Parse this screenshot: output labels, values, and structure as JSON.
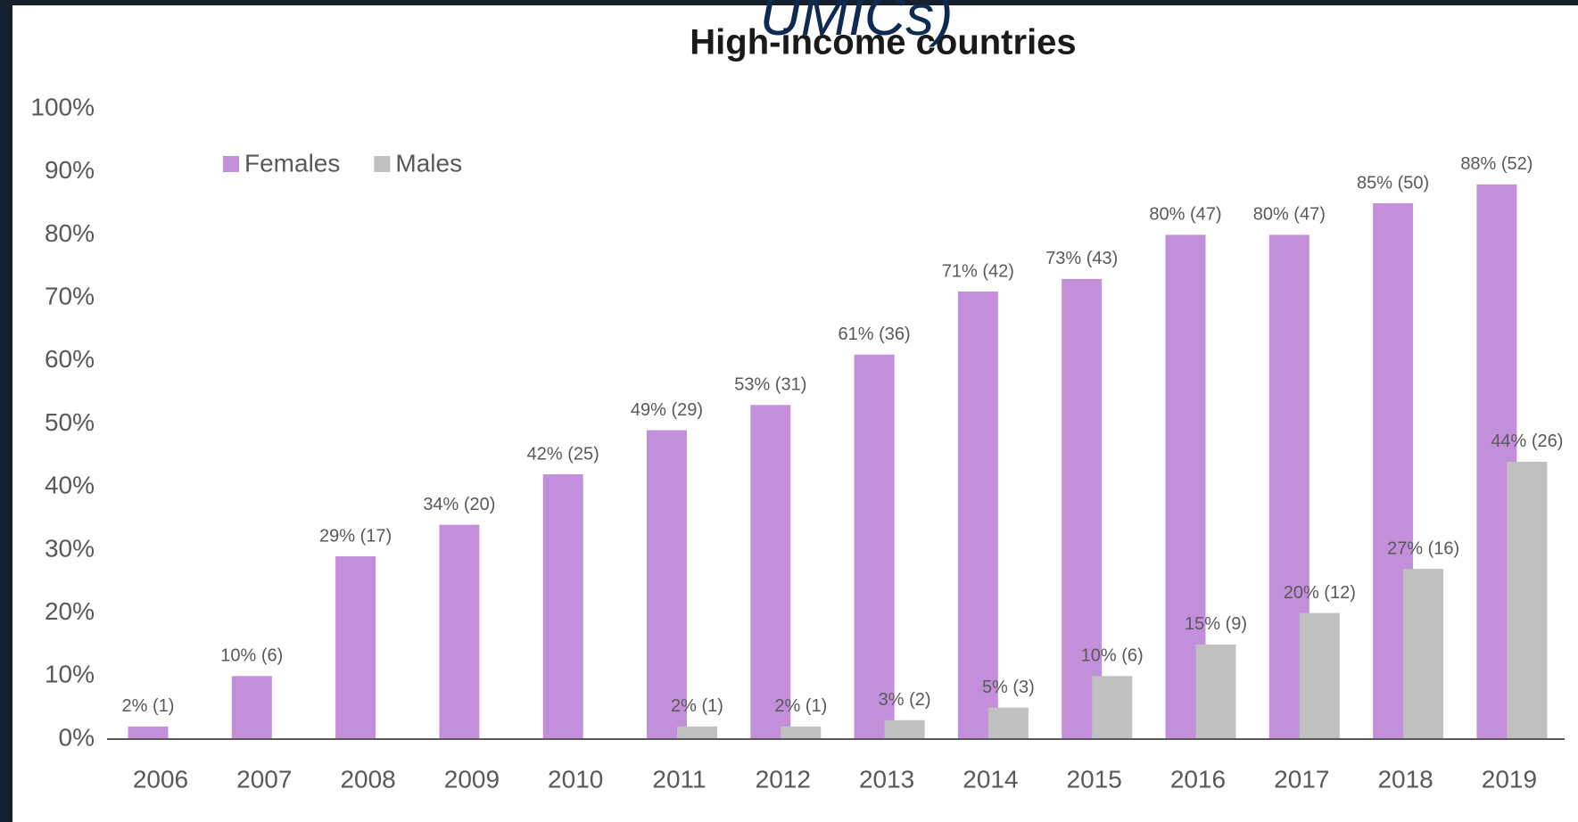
{
  "chart_data": {
    "type": "bar",
    "title": "High-income countries",
    "overlay_text": "UMICs)",
    "categories": [
      "2006",
      "2007",
      "2008",
      "2009",
      "2010",
      "2011",
      "2012",
      "2013",
      "2014",
      "2015",
      "2016",
      "2017",
      "2018",
      "2019"
    ],
    "series": [
      {
        "name": "Females",
        "color": "#c38fdb",
        "values": [
          2,
          10,
          29,
          34,
          42,
          49,
          53,
          61,
          71,
          73,
          80,
          80,
          85,
          88
        ],
        "value_labels": [
          "2% (1)",
          "10% (6)",
          "29% (17)",
          "34% (20)",
          "42% (25)",
          "49% (29)",
          "53% (31)",
          "61% (36)",
          "71% (42)",
          "73% (43)",
          "80% (47)",
          "80% (47)",
          "85% (50)",
          "88% (52)"
        ]
      },
      {
        "name": "Males",
        "color": "#c0c0c0",
        "values": [
          null,
          null,
          null,
          null,
          null,
          2,
          2,
          3,
          5,
          10,
          15,
          20,
          27,
          44
        ],
        "value_labels": [
          null,
          null,
          null,
          null,
          null,
          "2% (1)",
          "2% (1)",
          "3% (2)",
          "5% (3)",
          "10% (6)",
          "15% (9)",
          "20% (12)",
          "27% (16)",
          "44% (26)"
        ]
      }
    ],
    "ylim": [
      0,
      100
    ],
    "yticks": [
      {
        "value": 0,
        "label": "0%"
      },
      {
        "value": 10,
        "label": "10%"
      },
      {
        "value": 20,
        "label": "20%"
      },
      {
        "value": 30,
        "label": "30%"
      },
      {
        "value": 40,
        "label": "40%"
      },
      {
        "value": 50,
        "label": "50%"
      },
      {
        "value": 60,
        "label": "60%"
      },
      {
        "value": 70,
        "label": "70%"
      },
      {
        "value": 80,
        "label": "80%"
      },
      {
        "value": 90,
        "label": "90%"
      },
      {
        "value": 100,
        "label": "100%"
      }
    ],
    "legend": "top-left"
  }
}
